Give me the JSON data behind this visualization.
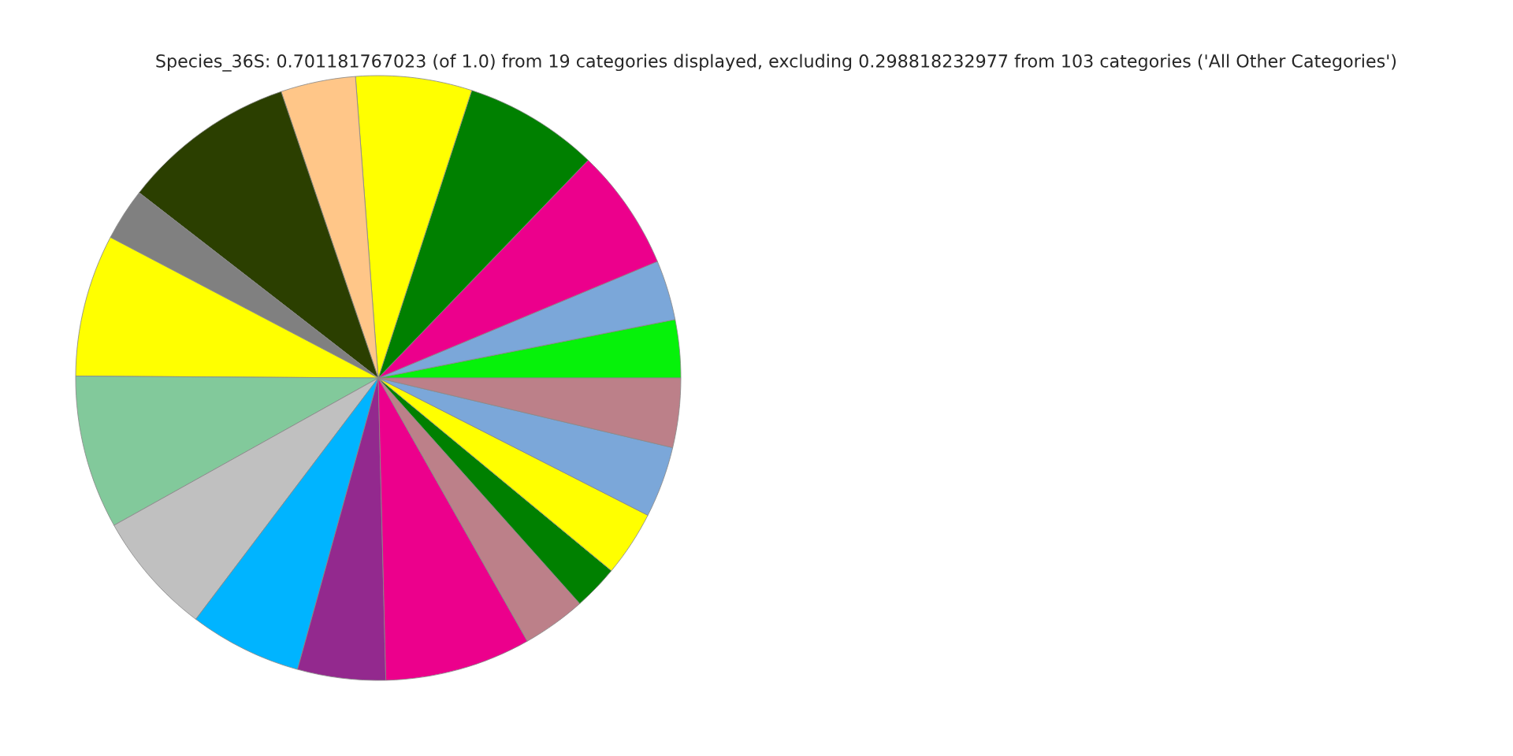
{
  "chart_data": {
    "type": "pie",
    "title": "Species_36S: 0.701181767023 (of 1.0) from 19 categories displayed, excluding 0.298818232977 from 103 categories ('All Other Categories')",
    "categories": [
      null,
      null,
      null,
      null,
      null,
      null,
      null,
      null,
      null,
      null,
      null,
      null,
      null,
      null,
      null,
      null,
      null,
      null,
      null
    ],
    "values": [
      3.1,
      3.2,
      6.5,
      7.2,
      6.2,
      4.0,
      9.3,
      2.8,
      7.6,
      8.2,
      6.6,
      6.0,
      4.7,
      7.8,
      3.4,
      2.4,
      3.5,
      3.8,
      3.7
    ],
    "colors": [
      "#06f20a",
      "#7ba7d9",
      "#ec008c",
      "#008000",
      "#ffff00",
      "#ffc688",
      "#2b3f00",
      "#808080",
      "#ffff00",
      "#82c99b",
      "#c0c0c0",
      "#00b4ff",
      "#93298e",
      "#ec008c",
      "#bc8089",
      "#008000",
      "#ffff00",
      "#7ba7d9",
      "#bc8089"
    ]
  }
}
